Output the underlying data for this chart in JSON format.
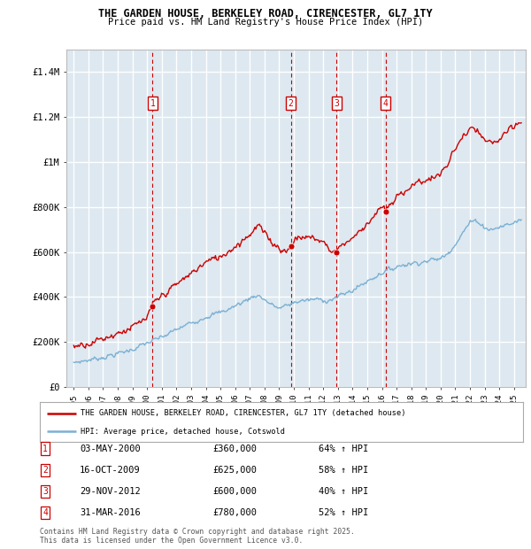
{
  "title": "THE GARDEN HOUSE, BERKELEY ROAD, CIRENCESTER, GL7 1TY",
  "subtitle": "Price paid vs. HM Land Registry's House Price Index (HPI)",
  "legend_line1": "THE GARDEN HOUSE, BERKELEY ROAD, CIRENCESTER, GL7 1TY (detached house)",
  "legend_line2": "HPI: Average price, detached house, Cotswold",
  "footer": "Contains HM Land Registry data © Crown copyright and database right 2025.\nThis data is licensed under the Open Government Licence v3.0.",
  "transactions": [
    {
      "num": 1,
      "date": "03-MAY-2000",
      "price": 360000,
      "pct": "64%",
      "dir": "↑",
      "year_x": 2000.37
    },
    {
      "num": 2,
      "date": "16-OCT-2009",
      "price": 625000,
      "pct": "58%",
      "dir": "↑",
      "year_x": 2009.79
    },
    {
      "num": 3,
      "date": "29-NOV-2012",
      "price": 600000,
      "pct": "40%",
      "dir": "↑",
      "year_x": 2012.91
    },
    {
      "num": 4,
      "date": "31-MAR-2016",
      "price": 780000,
      "pct": "52%",
      "dir": "↑",
      "year_x": 2016.25
    }
  ],
  "ylim": [
    0,
    1500000
  ],
  "yticks": [
    0,
    200000,
    400000,
    600000,
    800000,
    1000000,
    1200000,
    1400000
  ],
  "ytick_labels": [
    "£0",
    "£200K",
    "£400K",
    "£600K",
    "£800K",
    "£1M",
    "£1.2M",
    "£1.4M"
  ],
  "xlim_start": 1994.5,
  "xlim_end": 2025.8,
  "hpi_color": "#7ab0d4",
  "price_color": "#cc0000",
  "vline_color": "#cc0000",
  "bg_color": "#dde8f0",
  "grid_color": "#ffffff"
}
